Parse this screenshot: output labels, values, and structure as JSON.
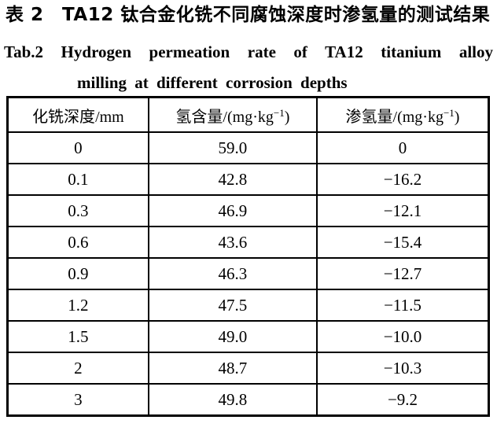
{
  "page": {
    "background_color": "#ffffff",
    "text_color": "#000000"
  },
  "caption": {
    "zh_title": "表 2　TA12 钛合金化铣不同腐蚀深度时渗氢量的测试结果",
    "en_title_line1": "Tab.2 Hydrogen permeation rate of TA12 titanium alloy",
    "en_title_line2": "milling at different corrosion depths"
  },
  "table": {
    "columns": [
      {
        "label": "化铣深度",
        "unit_pre": "/mm",
        "sup": "",
        "unit_post": ""
      },
      {
        "label": "氢含量",
        "unit_pre": "/(mg·kg",
        "sup": "−1",
        "unit_post": ")"
      },
      {
        "label": "渗氢量",
        "unit_pre": "/(mg·kg",
        "sup": "−1",
        "unit_post": ")"
      }
    ],
    "rows": [
      [
        "0",
        "59.0",
        "0"
      ],
      [
        "0.1",
        "42.8",
        "−16.2"
      ],
      [
        "0.3",
        "46.9",
        "−12.1"
      ],
      [
        "0.6",
        "43.6",
        "−15.4"
      ],
      [
        "0.9",
        "46.3",
        "−12.7"
      ],
      [
        "1.2",
        "47.5",
        "−11.5"
      ],
      [
        "1.5",
        "49.0",
        "−10.0"
      ],
      [
        "2",
        "48.7",
        "−10.3"
      ],
      [
        "3",
        "49.8",
        "−9.2"
      ]
    ]
  }
}
